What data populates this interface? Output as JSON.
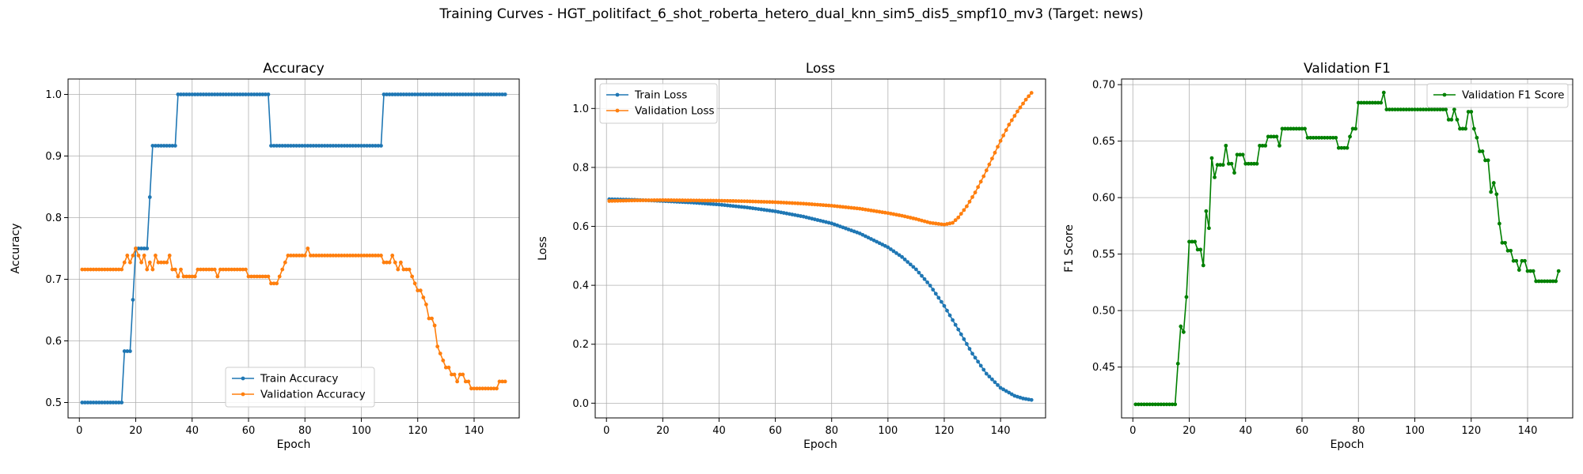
{
  "figure": {
    "title": "Training Curves - HGT_politifact_6_shot_roberta_hetero_dual_knn_sim5_dis5_smpf10_mv3 (Target: news)"
  },
  "chart_data": [
    {
      "type": "line",
      "title": "Accuracy",
      "xlabel": "Epoch",
      "ylabel": "Accuracy",
      "xlim": [
        -4,
        156
      ],
      "ylim": [
        0.475,
        1.025
      ],
      "xticks": [
        0,
        20,
        40,
        60,
        80,
        100,
        120,
        140
      ],
      "yticks": [
        0.5,
        0.6,
        0.7,
        0.8,
        0.9,
        1.0
      ],
      "ytick_labels": [
        "0.5",
        "0.6",
        "0.7",
        "0.8",
        "0.9",
        "1.0"
      ],
      "grid": true,
      "legend_position": "lower-center",
      "series": [
        {
          "name": "Train Accuracy",
          "color": "#1f77b4",
          "points": [
            [
              1,
              0.5
            ],
            [
              15,
              0.5
            ],
            [
              16,
              0.5833
            ],
            [
              18,
              0.5833
            ],
            [
              19,
              0.6667
            ],
            [
              20,
              0.75
            ],
            [
              24,
              0.75
            ],
            [
              25,
              0.8333
            ],
            [
              26,
              0.9167
            ],
            [
              34,
              0.9167
            ],
            [
              35,
              1.0
            ],
            [
              67,
              1.0
            ],
            [
              68,
              0.9167
            ],
            [
              107,
              0.9167
            ],
            [
              108,
              1.0
            ],
            [
              151,
              1.0
            ]
          ]
        },
        {
          "name": "Validation Accuracy",
          "color": "#ff7f0e",
          "points": [
            [
              1,
              0.7159
            ],
            [
              15,
              0.7159
            ],
            [
              16,
              0.7273
            ],
            [
              17,
              0.7386
            ],
            [
              18,
              0.7273
            ],
            [
              19,
              0.7386
            ],
            [
              20,
              0.75
            ],
            [
              21,
              0.7386
            ],
            [
              22,
              0.7273
            ],
            [
              23,
              0.7386
            ],
            [
              24,
              0.7159
            ],
            [
              25,
              0.7273
            ],
            [
              26,
              0.7159
            ],
            [
              27,
              0.7386
            ],
            [
              28,
              0.7273
            ],
            [
              31,
              0.7273
            ],
            [
              32,
              0.7386
            ],
            [
              33,
              0.7159
            ],
            [
              34,
              0.7159
            ],
            [
              35,
              0.7045
            ],
            [
              36,
              0.7159
            ],
            [
              37,
              0.7045
            ],
            [
              41,
              0.7045
            ],
            [
              42,
              0.7159
            ],
            [
              48,
              0.7159
            ],
            [
              49,
              0.7045
            ],
            [
              50,
              0.7159
            ],
            [
              59,
              0.7159
            ],
            [
              60,
              0.7045
            ],
            [
              67,
              0.7045
            ],
            [
              68,
              0.6932
            ],
            [
              70,
              0.6932
            ],
            [
              71,
              0.7045
            ],
            [
              72,
              0.7159
            ],
            [
              73,
              0.7273
            ],
            [
              74,
              0.7386
            ],
            [
              80,
              0.7386
            ],
            [
              81,
              0.75
            ],
            [
              82,
              0.7386
            ],
            [
              107,
              0.7386
            ],
            [
              108,
              0.7273
            ],
            [
              110,
              0.7273
            ],
            [
              111,
              0.7386
            ],
            [
              112,
              0.7273
            ],
            [
              113,
              0.7159
            ],
            [
              114,
              0.7273
            ],
            [
              115,
              0.7159
            ],
            [
              118,
              0.7045
            ],
            [
              119,
              0.6932
            ],
            [
              120,
              0.6818
            ],
            [
              121,
              0.6818
            ],
            [
              122,
              0.6705
            ],
            [
              123,
              0.6591
            ],
            [
              124,
              0.6364
            ],
            [
              125,
              0.6364
            ],
            [
              126,
              0.625
            ],
            [
              127,
              0.5909
            ],
            [
              128,
              0.5795
            ],
            [
              129,
              0.5682
            ],
            [
              130,
              0.5568
            ],
            [
              131,
              0.5568
            ],
            [
              132,
              0.5455
            ],
            [
              133,
              0.5455
            ],
            [
              134,
              0.5341
            ],
            [
              135,
              0.5455
            ],
            [
              136,
              0.5455
            ],
            [
              137,
              0.5341
            ],
            [
              138,
              0.5341
            ],
            [
              139,
              0.5227
            ],
            [
              140,
              0.5227
            ],
            [
              141,
              0.5227
            ],
            [
              142,
              0.5227
            ],
            [
              143,
              0.5227
            ],
            [
              144,
              0.5227
            ],
            [
              145,
              0.5227
            ],
            [
              146,
              0.5227
            ],
            [
              147,
              0.5227
            ],
            [
              148,
              0.5227
            ],
            [
              149,
              0.5341
            ],
            [
              150,
              0.5341
            ],
            [
              151,
              0.5341
            ]
          ]
        }
      ]
    },
    {
      "type": "line",
      "title": "Loss",
      "xlabel": "Epoch",
      "ylabel": "Loss",
      "xlim": [
        -4,
        156
      ],
      "ylim": [
        -0.05,
        1.1
      ],
      "xticks": [
        0,
        20,
        40,
        60,
        80,
        100,
        120,
        140
      ],
      "yticks": [
        0.0,
        0.2,
        0.4,
        0.6,
        0.8,
        1.0
      ],
      "ytick_labels": [
        "0.0",
        "0.2",
        "0.4",
        "0.6",
        "0.8",
        "1.0"
      ],
      "grid": true,
      "legend_position": "top-left",
      "series": [
        {
          "name": "Train Loss",
          "color": "#1f77b4",
          "points": [
            [
              1,
              0.692
            ],
            [
              10,
              0.69
            ],
            [
              20,
              0.686
            ],
            [
              30,
              0.681
            ],
            [
              40,
              0.674
            ],
            [
              50,
              0.664
            ],
            [
              60,
              0.651
            ],
            [
              70,
              0.633
            ],
            [
              80,
              0.61
            ],
            [
              90,
              0.576
            ],
            [
              100,
              0.529
            ],
            [
              105,
              0.496
            ],
            [
              110,
              0.454
            ],
            [
              115,
              0.399
            ],
            [
              120,
              0.33
            ],
            [
              125,
              0.25
            ],
            [
              130,
              0.168
            ],
            [
              135,
              0.1
            ],
            [
              140,
              0.052
            ],
            [
              145,
              0.025
            ],
            [
              148,
              0.016
            ],
            [
              151,
              0.011
            ]
          ]
        },
        {
          "name": "Validation Loss",
          "color": "#ff7f0e",
          "points": [
            [
              1,
              0.686
            ],
            [
              10,
              0.688
            ],
            [
              20,
              0.689
            ],
            [
              30,
              0.688
            ],
            [
              40,
              0.687
            ],
            [
              50,
              0.685
            ],
            [
              60,
              0.682
            ],
            [
              70,
              0.677
            ],
            [
              80,
              0.67
            ],
            [
              90,
              0.66
            ],
            [
              100,
              0.645
            ],
            [
              105,
              0.636
            ],
            [
              110,
              0.625
            ],
            [
              115,
              0.612
            ],
            [
              120,
              0.606
            ],
            [
              123,
              0.612
            ],
            [
              125,
              0.63
            ],
            [
              128,
              0.668
            ],
            [
              131,
              0.715
            ],
            [
              134,
              0.77
            ],
            [
              137,
              0.83
            ],
            [
              140,
              0.89
            ],
            [
              143,
              0.945
            ],
            [
              146,
              0.99
            ],
            [
              149,
              1.03
            ],
            [
              151,
              1.053
            ]
          ]
        }
      ]
    },
    {
      "type": "line",
      "title": "Validation F1",
      "xlabel": "Epoch",
      "ylabel": "F1 Score",
      "xlim": [
        -4,
        156
      ],
      "ylim": [
        0.405,
        0.705
      ],
      "xticks": [
        0,
        20,
        40,
        60,
        80,
        100,
        120,
        140
      ],
      "yticks": [
        0.45,
        0.5,
        0.55,
        0.6,
        0.65,
        0.7
      ],
      "ytick_labels": [
        "0.45",
        "0.50",
        "0.55",
        "0.60",
        "0.65",
        "0.70"
      ],
      "grid": true,
      "legend_position": "top-right",
      "series": [
        {
          "name": "Validation F1 Score",
          "color": "#008000",
          "points": [
            [
              1,
              0.417
            ],
            [
              15,
              0.417
            ],
            [
              16,
              0.453
            ],
            [
              17,
              0.486
            ],
            [
              18,
              0.481
            ],
            [
              19,
              0.512
            ],
            [
              20,
              0.561
            ],
            [
              22,
              0.561
            ],
            [
              23,
              0.554
            ],
            [
              24,
              0.554
            ],
            [
              25,
              0.54
            ],
            [
              26,
              0.588
            ],
            [
              27,
              0.573
            ],
            [
              28,
              0.635
            ],
            [
              29,
              0.618
            ],
            [
              30,
              0.629
            ],
            [
              32,
              0.629
            ],
            [
              33,
              0.646
            ],
            [
              34,
              0.63
            ],
            [
              35,
              0.63
            ],
            [
              36,
              0.622
            ],
            [
              37,
              0.638
            ],
            [
              39,
              0.638
            ],
            [
              40,
              0.63
            ],
            [
              44,
              0.63
            ],
            [
              45,
              0.646
            ],
            [
              47,
              0.646
            ],
            [
              48,
              0.654
            ],
            [
              51,
              0.654
            ],
            [
              52,
              0.646
            ],
            [
              53,
              0.661
            ],
            [
              61,
              0.661
            ],
            [
              62,
              0.653
            ],
            [
              72,
              0.653
            ],
            [
              73,
              0.644
            ],
            [
              76,
              0.644
            ],
            [
              77,
              0.654
            ],
            [
              78,
              0.661
            ],
            [
              79,
              0.661
            ],
            [
              80,
              0.684
            ],
            [
              88,
              0.684
            ],
            [
              89,
              0.693
            ],
            [
              90,
              0.678
            ],
            [
              110,
              0.678
            ],
            [
              111,
              0.678
            ],
            [
              112,
              0.669
            ],
            [
              113,
              0.669
            ],
            [
              114,
              0.678
            ],
            [
              115,
              0.669
            ],
            [
              116,
              0.661
            ],
            [
              118,
              0.661
            ],
            [
              119,
              0.676
            ],
            [
              120,
              0.676
            ],
            [
              121,
              0.661
            ],
            [
              122,
              0.653
            ],
            [
              123,
              0.641
            ],
            [
              124,
              0.641
            ],
            [
              125,
              0.633
            ],
            [
              126,
              0.633
            ],
            [
              127,
              0.605
            ],
            [
              128,
              0.613
            ],
            [
              129,
              0.603
            ],
            [
              130,
              0.577
            ],
            [
              131,
              0.56
            ],
            [
              132,
              0.56
            ],
            [
              133,
              0.553
            ],
            [
              134,
              0.553
            ],
            [
              135,
              0.544
            ],
            [
              136,
              0.544
            ],
            [
              137,
              0.536
            ],
            [
              138,
              0.544
            ],
            [
              139,
              0.544
            ],
            [
              140,
              0.535
            ],
            [
              141,
              0.535
            ],
            [
              142,
              0.535
            ],
            [
              143,
              0.526
            ],
            [
              150,
              0.526
            ],
            [
              151,
              0.535
            ]
          ]
        }
      ]
    }
  ]
}
